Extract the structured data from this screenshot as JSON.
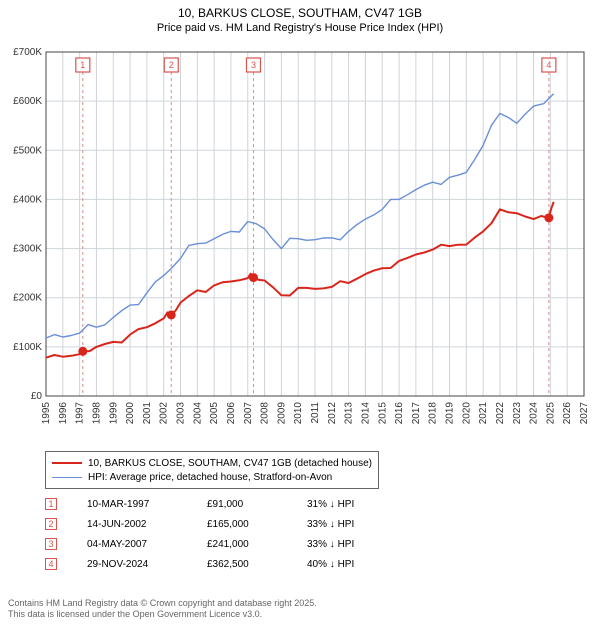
{
  "title_line1": "10, BARKUS CLOSE, SOUTHAM, CV47 1GB",
  "title_line2": "Price paid vs. HM Land Registry's House Price Index (HPI)",
  "chart": {
    "type": "line",
    "background_color": "#ffffff",
    "grid_color": "#cfd4da",
    "axis_color": "#444444",
    "label_fontsize": 10,
    "x_years": [
      1995,
      1996,
      1997,
      1998,
      1999,
      2000,
      2001,
      2002,
      2003,
      2004,
      2005,
      2006,
      2007,
      2008,
      2009,
      2010,
      2011,
      2012,
      2013,
      2014,
      2015,
      2016,
      2017,
      2018,
      2019,
      2020,
      2021,
      2022,
      2023,
      2024,
      2025,
      2026,
      2027
    ],
    "xlim": [
      1995,
      2027
    ],
    "ylim": [
      0,
      700000
    ],
    "ytick_step": 100000,
    "ytick_labels": [
      "£0",
      "£100K",
      "£200K",
      "£300K",
      "£400K",
      "£500K",
      "£600K",
      "£700K"
    ],
    "series": [
      {
        "key": "address",
        "label": "10, BARKUS CLOSE, SOUTHAM, CV47 1GB (detached house)",
        "color": "#d9261c",
        "width": 2.0,
        "x": [
          1995,
          1996,
          1997,
          1997.19,
          1998,
          1999,
          2000,
          2001,
          2002,
          2002.45,
          2003,
          2004,
          2005,
          2006,
          2007,
          2007.34,
          2008,
          2009,
          2010,
          2011,
          2012,
          2013,
          2014,
          2015,
          2016,
          2017,
          2018,
          2019,
          2020,
          2021,
          2022,
          2023,
          2024,
          2024.91,
          2025.2
        ],
        "y": [
          78000,
          80000,
          85000,
          91000,
          100000,
          110000,
          125000,
          140000,
          158000,
          165000,
          190000,
          215000,
          225000,
          233000,
          240000,
          241000,
          235000,
          205000,
          220000,
          218000,
          222000,
          230000,
          248000,
          260000,
          275000,
          288000,
          298000,
          305000,
          308000,
          335000,
          380000,
          372000,
          360000,
          362500,
          395000
        ],
        "markers": {
          "style": "circle",
          "size": 4.5,
          "color": "#d9261c",
          "x": [
            1997.19,
            2002.45,
            2007.34,
            2024.91
          ],
          "y": [
            91000,
            165000,
            241000,
            362500
          ]
        }
      },
      {
        "key": "hpi",
        "label": "HPI: Average price, detached house, Stratford-on-Avon",
        "color": "#6a8fd8",
        "width": 1.4,
        "x": [
          1995,
          1996,
          1997,
          1998,
          1999,
          2000,
          2001,
          2002,
          2003,
          2004,
          2005,
          2006,
          2007,
          2008,
          2009,
          2010,
          2011,
          2012,
          2013,
          2014,
          2015,
          2016,
          2017,
          2018,
          2019,
          2020,
          2021,
          2022,
          2023,
          2024,
          2025.2
        ],
        "y": [
          118000,
          120000,
          128000,
          140000,
          160000,
          185000,
          210000,
          245000,
          280000,
          310000,
          320000,
          335000,
          355000,
          340000,
          300000,
          320000,
          318000,
          322000,
          335000,
          360000,
          380000,
          400000,
          420000,
          435000,
          445000,
          455000,
          510000,
          575000,
          555000,
          590000,
          615000
        ]
      }
    ],
    "event_markers": {
      "box_stroke": "#d9534f",
      "text_color": "#d9534f",
      "dash": "3,3",
      "dash_color": "#d98f8a",
      "box_y": 54,
      "items": [
        {
          "n": "1",
          "x": 1997.19
        },
        {
          "n": "2",
          "x": 2002.45
        },
        {
          "n": "3",
          "x": 2007.34
        },
        {
          "n": "4",
          "x": 2024.91
        }
      ]
    }
  },
  "legend": {
    "border_color": "#666666",
    "fontsize": 10
  },
  "events_table": {
    "rows": [
      {
        "n": "1",
        "date": "10-MAR-1997",
        "price": "£91,000",
        "diff": "31% ↓ HPI"
      },
      {
        "n": "2",
        "date": "14-JUN-2002",
        "price": "£165,000",
        "diff": "33% ↓ HPI"
      },
      {
        "n": "3",
        "date": "04-MAY-2007",
        "price": "£241,000",
        "diff": "33% ↓ HPI"
      },
      {
        "n": "4",
        "date": "29-NOV-2024",
        "price": "£362,500",
        "diff": "40% ↓ HPI"
      }
    ]
  },
  "footer_line1": "Contains HM Land Registry data © Crown copyright and database right 2025.",
  "footer_line2": "This data is licensed under the Open Government Licence v3.0."
}
